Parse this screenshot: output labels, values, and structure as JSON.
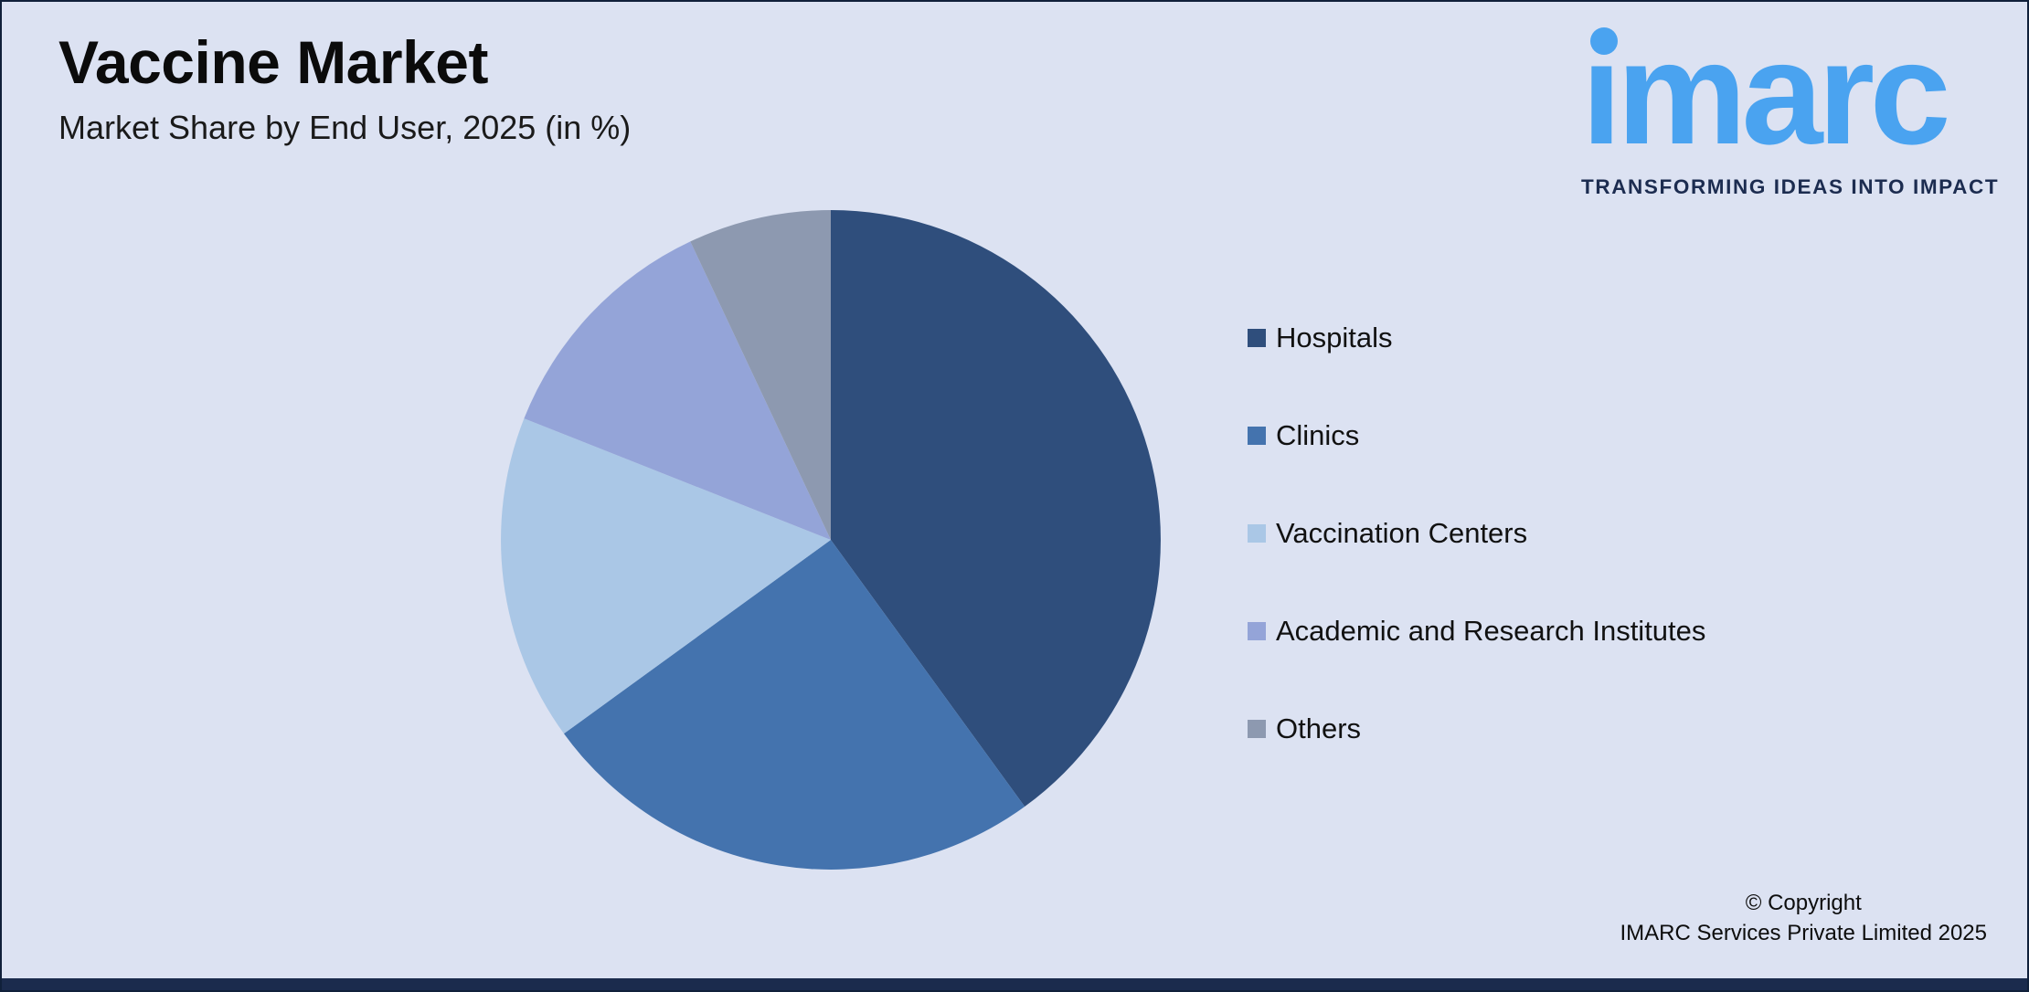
{
  "header": {
    "title": "Vaccine Market",
    "subtitle": "Market Share by End User, 2025 (in %)"
  },
  "logo": {
    "brand": "imarc",
    "brand_display": "ımarc",
    "tagline": "TRANSFORMING IDEAS INTO IMPACT",
    "brand_color": "#4aa3f0",
    "tagline_color": "#1c2c50"
  },
  "chart_data": {
    "type": "pie",
    "title": "Vaccine Market",
    "subtitle": "Market Share by End User, 2025 (in %)",
    "categories": [
      "Hospitals",
      "Clinics",
      "Vaccination Centers",
      "Academic and Research Institutes",
      "Others"
    ],
    "values": [
      40,
      25,
      16,
      12,
      7
    ],
    "unit": "%",
    "colors": [
      "#2f4e7c",
      "#4473ae",
      "#aac7e6",
      "#94a4d8",
      "#8d99b0"
    ],
    "start_angle": "12-oclock",
    "direction": "clockwise",
    "legend_position": "right",
    "data_labels_shown": false
  },
  "footer": {
    "copyright_line1": "© Copyright",
    "copyright_line2": "IMARC Services Private Limited 2025"
  },
  "theme": {
    "background": "#dce2f2",
    "bottom_bar": "#1b2b4d",
    "border": "#10203a",
    "text": "#111111"
  }
}
